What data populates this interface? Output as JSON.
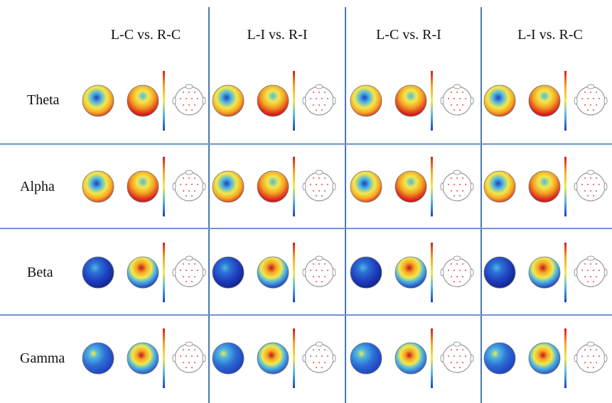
{
  "figure": {
    "columns": [
      {
        "label": "L-C vs. R-C"
      },
      {
        "label": "L-I vs. R-I"
      },
      {
        "label": "L-C vs. R-I"
      },
      {
        "label": "L-I vs. R-C"
      }
    ],
    "rows": [
      {
        "label": "Theta",
        "band": "theta"
      },
      {
        "label": "Alpha",
        "band": "alpha"
      },
      {
        "label": "Beta",
        "band": "beta"
      },
      {
        "label": "Gamma",
        "band": "gamma"
      }
    ],
    "colors": {
      "divider": "#4a76b8",
      "hot": "#d7191c",
      "warm": "#f5a623",
      "mid": "#f2e94e",
      "cool": "#4fb8e0",
      "cold": "#1f3fbf",
      "electrode": "#e05050"
    },
    "panel_items": [
      "left-topomap",
      "right-topomap",
      "colorbar",
      "electrode-layout"
    ]
  }
}
